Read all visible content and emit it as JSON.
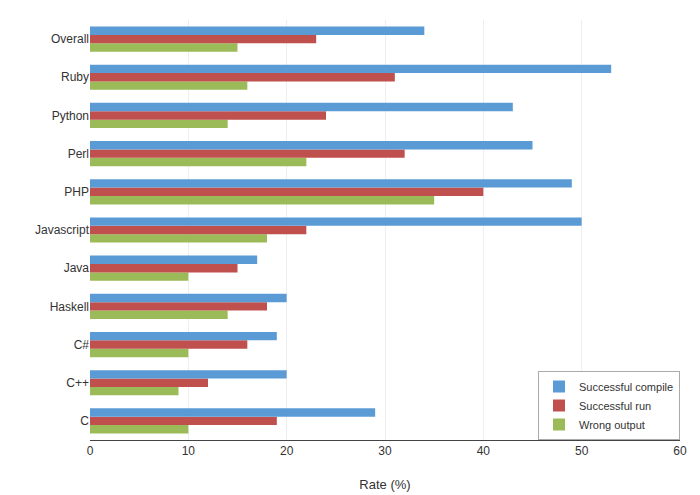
{
  "chart_data": {
    "type": "bar",
    "orientation": "horizontal",
    "categories": [
      "C",
      "C++",
      "C#",
      "Haskell",
      "Java",
      "Javascript",
      "PHP",
      "Perl",
      "Python",
      "Ruby",
      "Overall"
    ],
    "series": [
      {
        "name": "Successful compile",
        "color": "#5B9BD5",
        "values": [
          29,
          20,
          19,
          20,
          17,
          50,
          49,
          45,
          43,
          53,
          34
        ]
      },
      {
        "name": "Successful run",
        "color": "#C0504D",
        "values": [
          19,
          12,
          16,
          18,
          15,
          22,
          40,
          32,
          24,
          31,
          23
        ]
      },
      {
        "name": "Wrong output",
        "color": "#9BBB59",
        "values": [
          10,
          9,
          10,
          14,
          10,
          18,
          35,
          22,
          14,
          16,
          15
        ]
      }
    ],
    "xlabel": "Rate (%)",
    "xlim": [
      0,
      60
    ],
    "xticks": [
      0,
      10,
      20,
      30,
      40,
      50,
      60
    ],
    "grid": true,
    "legend": "lower right"
  }
}
